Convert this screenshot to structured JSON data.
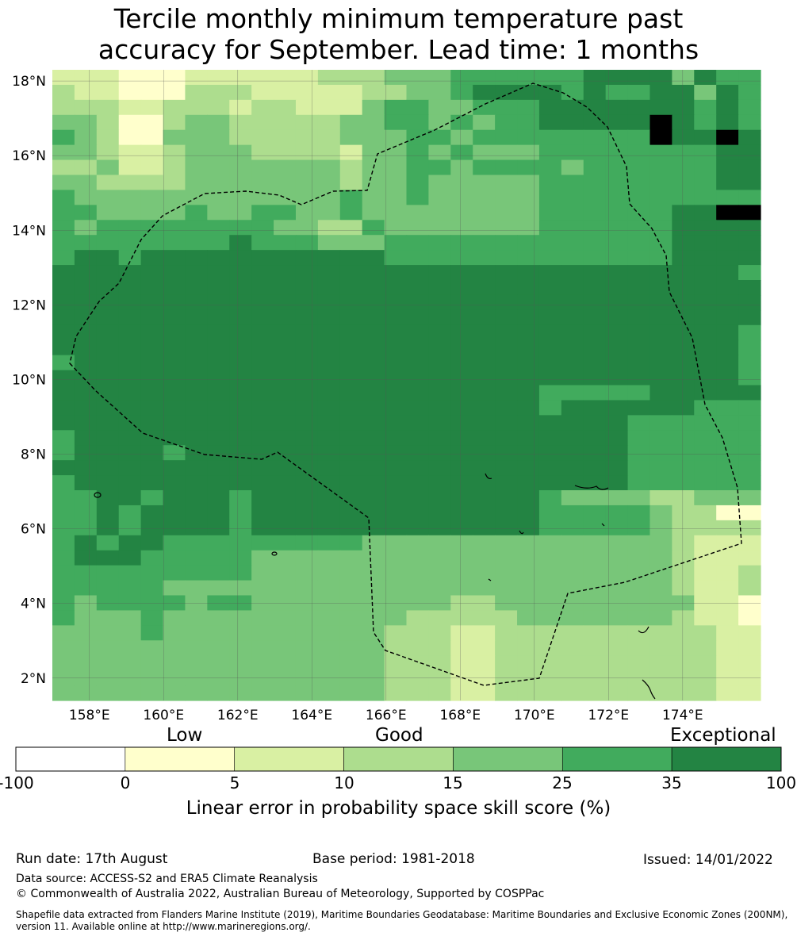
{
  "title": {
    "line1": "Tercile monthly minimum temperature past",
    "line2": "accuracy for September. Lead time: 1 months"
  },
  "map": {
    "lat_ticks": [
      "18°N",
      "16°N",
      "14°N",
      "12°N",
      "10°N",
      "8°N",
      "6°N",
      "4°N",
      "2°N"
    ],
    "lon_ticks": [
      "158°E",
      "160°E",
      "162°E",
      "164°E",
      "166°E",
      "168°E",
      "170°E",
      "172°E",
      "174°E"
    ],
    "lon_range_deg_e": [
      157.0,
      176.1
    ],
    "lat_range_deg_n": [
      1.4,
      18.3
    ],
    "cell_size_deg": 0.55,
    "legend_colors": [
      "#ffffff",
      "#ffffcc",
      "#d9f0a3",
      "#addd8e",
      "#78c679",
      "#41ab5d",
      "#238443"
    ],
    "grid_rows_top_to_bottom": [
      "22211122222233344455555566664655",
      "32211133322222334456666565566465",
      "33322333233222455445556666666565",
      "44311344333334455454556666676565",
      "54311444333334445545555555576676",
      "44322344433332445454445555555566",
      "33422344444443445545555455555566",
      "44333344444443445444445555555566",
      "54444444444445445444445555555555",
      "55444454455445444444445555556677",
      "54555555554433544444445555556666",
      "55555555655544455555555555556666",
      "56656666666666655555555555556666",
      "66666666666666666666666666666665",
      "66666666666666666666666666666666",
      "66666666666666666666666666666666",
      "66666666666666666666666666666666",
      "66666666666666666666666666666665",
      "66666666666666666666666666666665",
      "56666666666666666666666666666665",
      "66666666666666666666666666666665",
      "66666666666666666666665555566666",
      "66666666666666666666665666666555",
      "66666666666666666666666666555555",
      "56666666666666666666666666555555",
      "56666566666666666666666666555555",
      "66666666666666666666666666555555",
      "56666666666666666666666666555555",
      "55665666566666666666665444433444",
      "55656666566666666666665555543311",
      "55656666566666666666665555543333",
      "56566555555555444444444444443222",
      "56665555544444444444444444443222",
      "55555555544444444444444444443223",
      "55555444444444444444444444443223",
      "54555545544444444433444444444221",
      "54445444444444443333344444443221",
      "44445444444444433322333333333322",
      "44444444444444433322333333333322",
      "44444444444444433322333333333322",
      "44444444444444433322333333333322",
      "44444444444444433322333333333322"
    ]
  },
  "colorbar": {
    "category_labels": [
      "Low",
      "Good",
      "Exceptional"
    ],
    "tick_labels": [
      "-100",
      "0",
      "5",
      "10",
      "15",
      "25",
      "35",
      "100"
    ],
    "axis_label": "Linear error in probability space skill score (%)"
  },
  "footer": {
    "run_date": "Run date: 17th August",
    "base_period": "Base period: 1981-2018",
    "issued": "Issued: 14/01/2022",
    "data_source": "Data source: ACCESS-S2 and ERA5 Climate Reanalysis",
    "copyright": "© Commonwealth of Australia 2022, Australian Bureau of Meteorology, Supported by COSPPac",
    "shapefile_line1": "Shapefile data extracted from Flanders Marine Institute (2019), Maritime Boundaries Geodatabase: Maritime Boundaries and Exclusive Economic Zones (200NM),",
    "shapefile_line2": "version 11. Available online at http://www.marineregions.org/."
  }
}
